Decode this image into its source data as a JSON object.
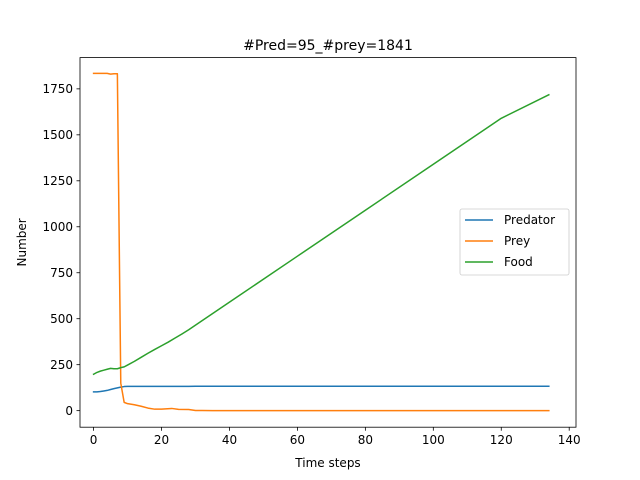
{
  "chart_data": {
    "type": "line",
    "title": "#Pred=95_#prey=1841",
    "xlabel": "Time steps",
    "ylabel": "Number",
    "xlim": [
      -4,
      142
    ],
    "ylim": [
      -90,
      1920
    ],
    "xticks": [
      0,
      20,
      40,
      60,
      80,
      100,
      120,
      140
    ],
    "yticks": [
      0,
      250,
      500,
      750,
      1000,
      1250,
      1500,
      1750
    ],
    "legend_position": "center-right",
    "grid": false,
    "series": [
      {
        "name": "Predator",
        "color": "#1f77b4",
        "x": [
          0,
          1,
          2,
          3,
          4,
          5,
          6,
          7,
          8,
          9,
          10,
          15,
          20,
          25,
          28,
          30,
          40,
          60,
          80,
          100,
          120,
          134
        ],
        "y": [
          102,
          102,
          104,
          107,
          110,
          115,
          120,
          124,
          128,
          131,
          132,
          132,
          132,
          132,
          132,
          133,
          133,
          133,
          133,
          133,
          133,
          133
        ]
      },
      {
        "name": "Prey",
        "color": "#ff7f0e",
        "x": [
          0,
          1,
          2,
          3,
          4,
          5,
          6,
          7,
          8,
          9,
          10,
          12,
          14,
          16,
          18,
          20,
          23,
          25,
          28,
          30,
          32,
          35,
          40,
          60,
          80,
          100,
          120,
          134
        ],
        "y": [
          1834,
          1834,
          1834,
          1834,
          1834,
          1830,
          1832,
          1832,
          150,
          45,
          38,
          32,
          24,
          14,
          8,
          8,
          12,
          7,
          6,
          1,
          1,
          0,
          0,
          0,
          0,
          0,
          0,
          0
        ]
      },
      {
        "name": "Food",
        "color": "#2ca02c",
        "x": [
          0,
          1,
          2,
          3,
          4,
          5,
          6,
          7,
          8,
          9,
          10,
          12,
          14,
          16,
          18,
          20,
          22,
          24,
          26,
          28,
          30,
          40,
          60,
          80,
          100,
          120,
          134
        ],
        "y": [
          198,
          208,
          215,
          220,
          225,
          230,
          228,
          228,
          234,
          238,
          248,
          268,
          290,
          312,
          333,
          353,
          373,
          395,
          417,
          440,
          465,
          590,
          840,
          1090,
          1340,
          1590,
          1718
        ]
      }
    ]
  }
}
